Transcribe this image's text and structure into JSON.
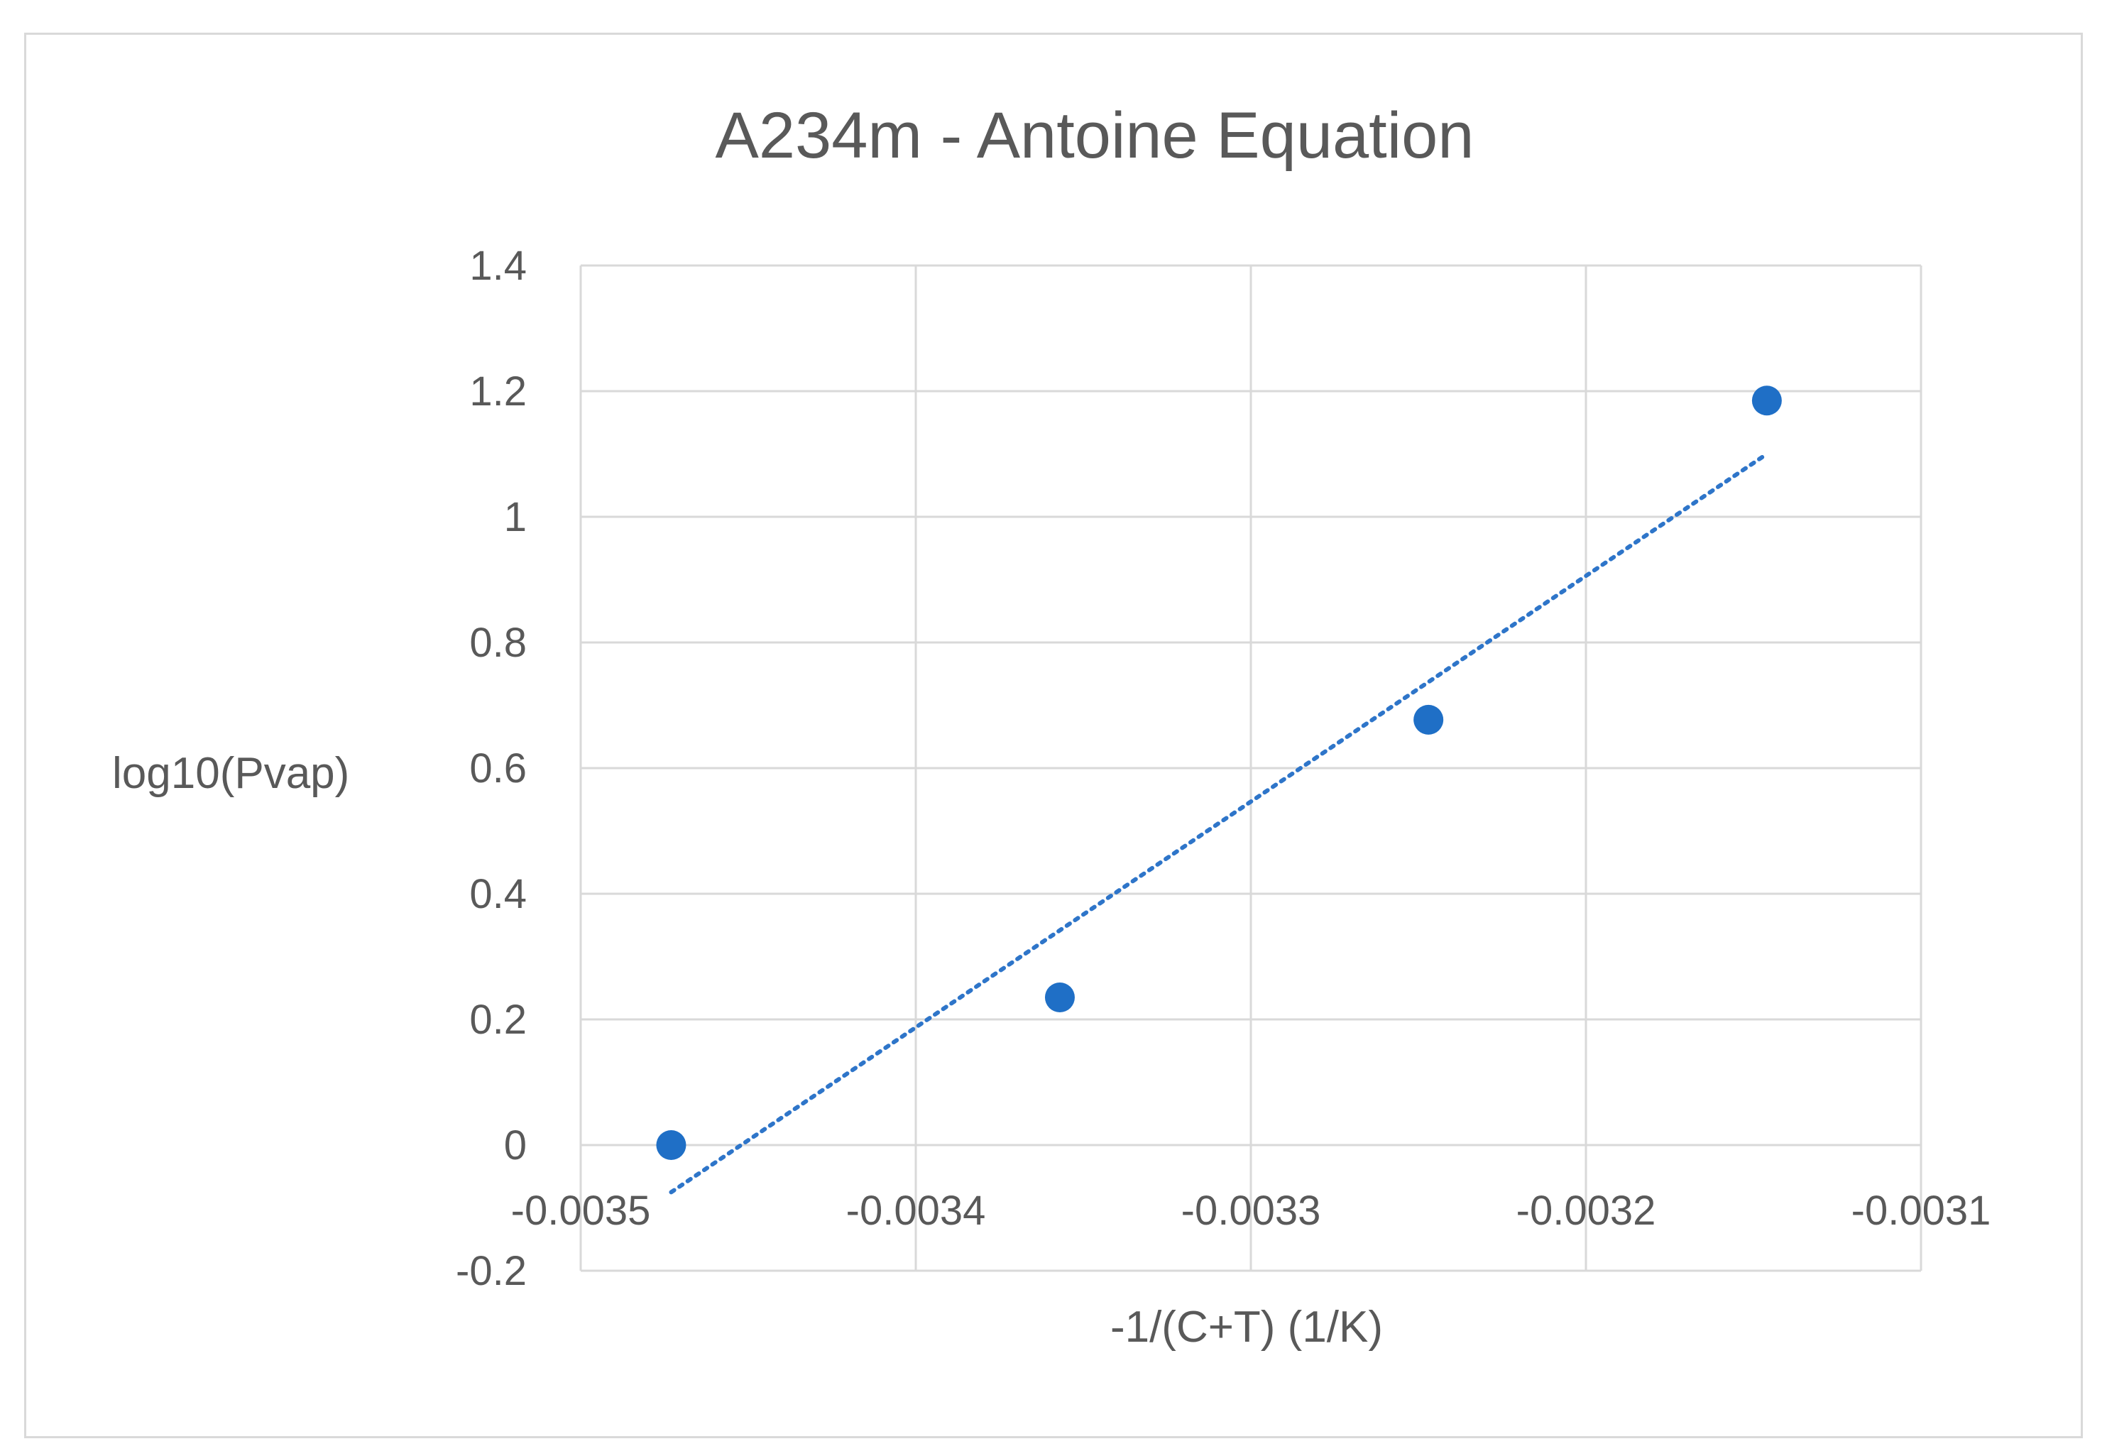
{
  "chart_data": {
    "type": "scatter",
    "title": "A234m - Antoine Equation",
    "xlabel": "-1/(C+T) (1/K)",
    "ylabel": "log10(Pvap)",
    "xlim": [
      -0.0035,
      -0.0031
    ],
    "ylim": [
      -0.2,
      1.4
    ],
    "x_ticks": [
      -0.0035,
      -0.0034,
      -0.0033,
      -0.0032,
      -0.0031
    ],
    "x_tick_labels": [
      "-0.0035",
      "-0.0034",
      "-0.0033",
      "-0.0032",
      "-0.0031"
    ],
    "y_ticks": [
      -0.2,
      0,
      0.2,
      0.4,
      0.6,
      0.8,
      1,
      1.2,
      1.4
    ],
    "y_tick_labels": [
      "-0.2",
      "0",
      "0.2",
      "0.4",
      "0.6",
      "0.8",
      "1",
      "1.2",
      "1.4"
    ],
    "grid": true,
    "legend": "none",
    "series": [
      {
        "points": [
          {
            "x": -0.003473,
            "y": 0.0
          },
          {
            "x": -0.003357,
            "y": 0.235
          },
          {
            "x": -0.003247,
            "y": 0.677
          },
          {
            "x": -0.003146,
            "y": 1.185
          }
        ],
        "color": "#1f6fc6"
      }
    ],
    "trendline": {
      "kind": "linear",
      "style": "dotted",
      "color": "#2e75c9",
      "x_range": [
        -0.003473,
        -0.003146
      ],
      "y_range": [
        -0.075,
        1.1
      ]
    }
  }
}
